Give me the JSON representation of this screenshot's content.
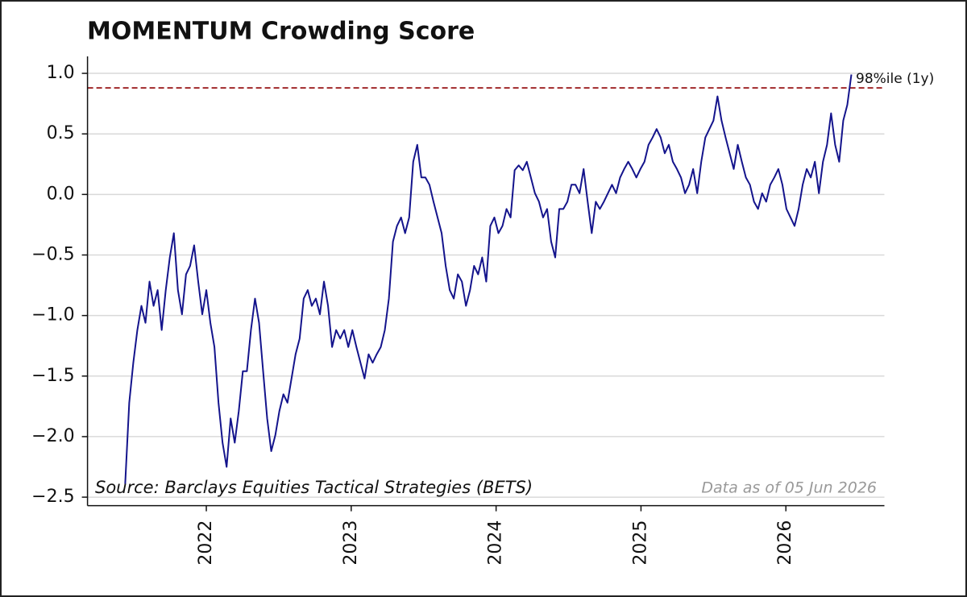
{
  "chart_data": {
    "type": "line",
    "title": "MOMENTUM Crowding Score",
    "x": [
      2021.44,
      2021.468,
      2021.496,
      2021.524,
      2021.552,
      2021.58,
      2021.608,
      2021.636,
      2021.664,
      2021.692,
      2021.72,
      2021.748,
      2021.776,
      2021.804,
      2021.832,
      2021.86,
      2021.888,
      2021.916,
      2021.944,
      2021.972,
      2022.0,
      2022.028,
      2022.056,
      2022.084,
      2022.112,
      2022.14,
      2022.168,
      2022.196,
      2022.224,
      2022.252,
      2022.28,
      2022.308,
      2022.336,
      2022.364,
      2022.392,
      2022.42,
      2022.448,
      2022.476,
      2022.504,
      2022.532,
      2022.56,
      2022.588,
      2022.616,
      2022.644,
      2022.672,
      2022.7,
      2022.728,
      2022.756,
      2022.784,
      2022.812,
      2022.84,
      2022.868,
      2022.896,
      2022.924,
      2022.952,
      2022.98,
      2023.008,
      2023.036,
      2023.064,
      2023.092,
      2023.12,
      2023.148,
      2023.176,
      2023.204,
      2023.232,
      2023.26,
      2023.288,
      2023.316,
      2023.344,
      2023.372,
      2023.4,
      2023.428,
      2023.456,
      2023.484,
      2023.512,
      2023.54,
      2023.568,
      2023.596,
      2023.624,
      2023.652,
      2023.68,
      2023.708,
      2023.736,
      2023.764,
      2023.792,
      2023.82,
      2023.848,
      2023.876,
      2023.904,
      2023.932,
      2023.96,
      2023.988,
      2024.016,
      2024.044,
      2024.072,
      2024.1,
      2024.128,
      2024.156,
      2024.184,
      2024.212,
      2024.24,
      2024.268,
      2024.296,
      2024.324,
      2024.352,
      2024.38,
      2024.408,
      2024.436,
      2024.464,
      2024.492,
      2024.52,
      2024.548,
      2024.576,
      2024.604,
      2024.632,
      2024.66,
      2024.688,
      2024.716,
      2024.744,
      2024.772,
      2024.8,
      2024.828,
      2024.856,
      2024.884,
      2024.912,
      2024.94,
      2024.968,
      2024.996,
      2025.024,
      2025.052,
      2025.08,
      2025.108,
      2025.136,
      2025.164,
      2025.192,
      2025.22,
      2025.248,
      2025.276,
      2025.304,
      2025.332,
      2025.36,
      2025.388,
      2025.416,
      2025.444,
      2025.472,
      2025.5,
      2025.528,
      2025.556,
      2025.584,
      2025.612,
      2025.64,
      2025.668,
      2025.696,
      2025.724,
      2025.752,
      2025.78,
      2025.808,
      2025.836,
      2025.864,
      2025.892,
      2025.92,
      2025.948,
      2025.976,
      2026.004,
      2026.032,
      2026.06,
      2026.088,
      2026.116,
      2026.144,
      2026.172,
      2026.2,
      2026.228,
      2026.256,
      2026.284,
      2026.312,
      2026.34,
      2026.368,
      2026.396,
      2026.424,
      2026.452
    ],
    "values": [
      -2.39,
      -1.72,
      -1.39,
      -1.12,
      -0.92,
      -1.06,
      -0.72,
      -0.92,
      -0.79,
      -1.12,
      -0.79,
      -0.52,
      -0.32,
      -0.79,
      -0.99,
      -0.66,
      -0.59,
      -0.42,
      -0.72,
      -0.99,
      -0.79,
      -1.06,
      -1.26,
      -1.72,
      -2.05,
      -2.25,
      -1.85,
      -2.05,
      -1.79,
      -1.46,
      -1.46,
      -1.12,
      -0.86,
      -1.06,
      -1.46,
      -1.85,
      -2.12,
      -1.99,
      -1.79,
      -1.65,
      -1.72,
      -1.52,
      -1.32,
      -1.19,
      -0.86,
      -0.79,
      -0.92,
      -0.86,
      -0.99,
      -0.72,
      -0.92,
      -1.26,
      -1.12,
      -1.19,
      -1.12,
      -1.26,
      -1.12,
      -1.26,
      -1.39,
      -1.52,
      -1.32,
      -1.39,
      -1.32,
      -1.26,
      -1.12,
      -0.86,
      -0.39,
      -0.26,
      -0.19,
      -0.32,
      -0.19,
      0.27,
      0.41,
      0.14,
      0.14,
      0.08,
      -0.06,
      -0.19,
      -0.32,
      -0.59,
      -0.79,
      -0.86,
      -0.66,
      -0.72,
      -0.92,
      -0.79,
      -0.59,
      -0.66,
      -0.52,
      -0.72,
      -0.26,
      -0.19,
      -0.32,
      -0.26,
      -0.12,
      -0.19,
      0.2,
      0.24,
      0.2,
      0.27,
      0.14,
      0.01,
      -0.06,
      -0.19,
      -0.12,
      -0.39,
      -0.52,
      -0.12,
      -0.12,
      -0.06,
      0.08,
      0.08,
      0.01,
      0.21,
      -0.06,
      -0.32,
      -0.06,
      -0.12,
      -0.06,
      0.01,
      0.08,
      0.01,
      0.14,
      0.21,
      0.27,
      0.21,
      0.14,
      0.21,
      0.27,
      0.41,
      0.47,
      0.54,
      0.47,
      0.34,
      0.41,
      0.27,
      0.21,
      0.14,
      0.01,
      0.08,
      0.21,
      0.01,
      0.27,
      0.47,
      0.54,
      0.61,
      0.81,
      0.61,
      0.47,
      0.34,
      0.21,
      0.41,
      0.27,
      0.14,
      0.08,
      -0.06,
      -0.12,
      0.01,
      -0.06,
      0.08,
      0.14,
      0.21,
      0.08,
      -0.12,
      -0.19,
      -0.26,
      -0.12,
      0.08,
      0.21,
      0.14,
      0.27,
      0.01,
      0.27,
      0.41,
      0.67,
      0.41,
      0.27,
      0.61,
      0.74,
      0.99
    ],
    "color": "#14148c",
    "reference_line": {
      "value": 0.88,
      "label": "98%ile (1y)",
      "color": "#a0282a"
    },
    "source": "Source: Barclays Equities Tactical Strategies (BETS)",
    "note": "Data as of 05 Jun 2026",
    "xlim": [
      2021.18,
      2026.68
    ],
    "xticks": [
      2022,
      2023,
      2024,
      2025,
      2026
    ],
    "ylim": [
      -2.57,
      1.14
    ],
    "yticks": [
      {
        "value": -2.5,
        "label": "−2.5"
      },
      {
        "value": -2,
        "label": "−2.0"
      },
      {
        "value": -1.5,
        "label": "−1.5"
      },
      {
        "value": -1,
        "label": "−1.0"
      },
      {
        "value": -0.5,
        "label": "−0.5"
      },
      {
        "value": 0,
        "label": "0.0"
      },
      0.5,
      {
        "value": 1,
        "label": "1.0"
      }
    ],
    "grid": true
  }
}
